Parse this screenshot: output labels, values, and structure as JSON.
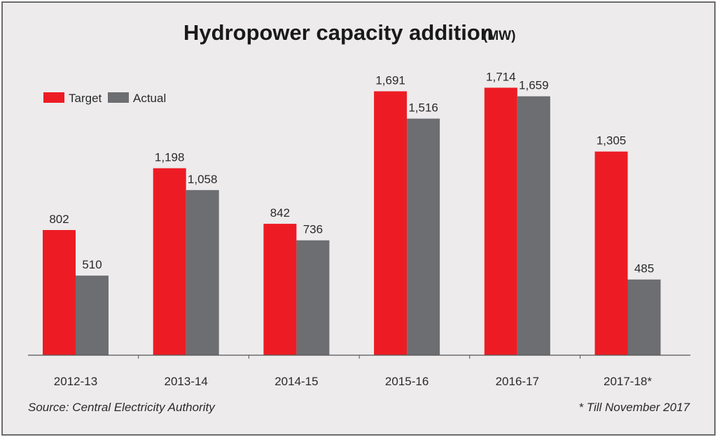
{
  "chart_data": {
    "type": "bar",
    "title": "Hydropower capacity addition",
    "title_unit": "(MW)",
    "categories": [
      "2012-13",
      "2013-14",
      "2014-15",
      "2015-16",
      "2016-17",
      "2017-18*"
    ],
    "series": [
      {
        "name": "Target",
        "color": "#ed1c24",
        "values": [
          802,
          1198,
          842,
          1691,
          1714,
          1305
        ],
        "labels": [
          "802",
          "1,198",
          "842",
          "1,691",
          "1,714",
          "1,305"
        ]
      },
      {
        "name": "Actual",
        "color": "#6d6e71",
        "values": [
          510,
          1058,
          736,
          1516,
          1659,
          485
        ],
        "labels": [
          "510",
          "1,058",
          "736",
          "1,516",
          "1,659",
          "485"
        ]
      }
    ],
    "xlabel": "",
    "ylabel": "",
    "ylim": [
      0,
      1800
    ],
    "grid": false,
    "legend": "top-left",
    "source": "Source: Central Electricity Authority",
    "footnote": "* Till November 2017"
  }
}
